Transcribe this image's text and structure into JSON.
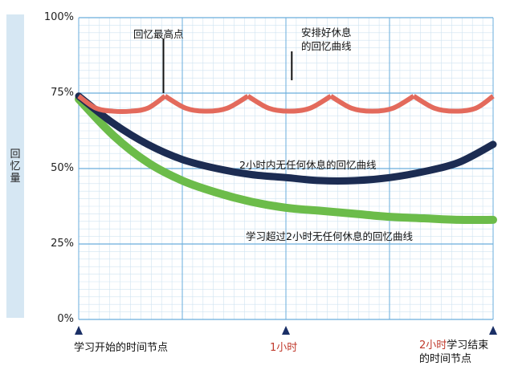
{
  "chart_data": {
    "type": "line",
    "title": "",
    "ylabel": "回忆量",
    "ylim": [
      0,
      100
    ],
    "yticks": [
      "0%",
      "25%",
      "50%",
      "75%",
      "100%"
    ],
    "x_markers": [
      {
        "label": "学习开始的时间节点",
        "x": 0,
        "color": "#111111"
      },
      {
        "label": "1小时",
        "x": 60,
        "color": "#c0392b"
      },
      {
        "label_red": "2小时",
        "label": "学习结束的时间节点",
        "x": 120,
        "color": "#c0392b"
      }
    ],
    "x_unit": "min",
    "xlim": [
      0,
      120
    ],
    "series": [
      {
        "name": "2小时内无任何休息的回忆曲线",
        "color": "#1c2c52",
        "x": [
          0,
          10,
          20,
          30,
          40,
          50,
          60,
          70,
          80,
          90,
          100,
          110,
          120
        ],
        "y": [
          74,
          65,
          58,
          53,
          50,
          48,
          47,
          46,
          46,
          47,
          49,
          52,
          58
        ]
      },
      {
        "name": "学习超过2小时无任何休息的回忆曲线",
        "color": "#6cbc4a",
        "x": [
          0,
          10,
          20,
          30,
          40,
          50,
          60,
          70,
          80,
          90,
          100,
          110,
          120
        ],
        "y": [
          73,
          61,
          52,
          46,
          42,
          39,
          37,
          36,
          35,
          34,
          33.5,
          33,
          33
        ]
      },
      {
        "name": "安排好休息的回忆曲线",
        "color": "#e36a5c",
        "segments": [
          {
            "x": [
              0,
              5,
              10,
              15,
              20,
              25
            ],
            "y": [
              74,
              70,
              69,
              69,
              70,
              74
            ]
          },
          {
            "x": [
              25,
              31,
              37,
              43,
              49
            ],
            "y": [
              74,
              70,
              69,
              70,
              74
            ]
          },
          {
            "x": [
              49,
              55,
              61,
              67,
              73
            ],
            "y": [
              74,
              70,
              69,
              70,
              74
            ]
          },
          {
            "x": [
              73,
              79,
              85,
              91,
              97
            ],
            "y": [
              74,
              70,
              69,
              70,
              74
            ]
          },
          {
            "x": [
              97,
              103,
              109,
              115,
              120
            ],
            "y": [
              74,
              70,
              69,
              70,
              74
            ]
          }
        ]
      }
    ],
    "annotations": [
      {
        "text": "回忆最高点",
        "x": 24,
        "y": 92
      },
      {
        "text": "安排好休息的回忆曲线",
        "x": 61,
        "y": 90
      }
    ]
  }
}
